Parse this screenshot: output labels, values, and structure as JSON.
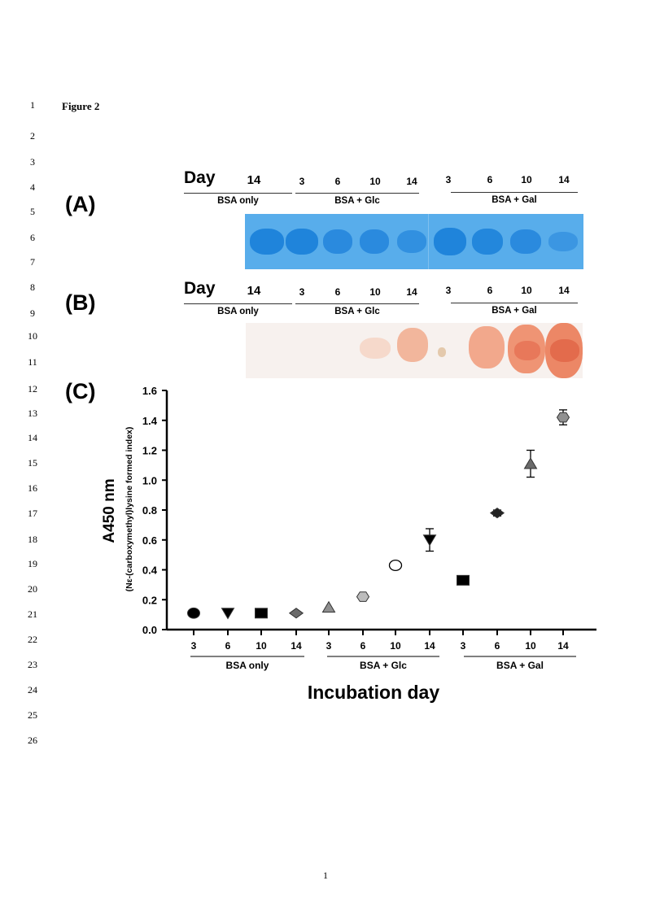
{
  "line_numbers": [
    "1",
    "2",
    "3",
    "4",
    "5",
    "6",
    "7",
    "8",
    "9",
    "10",
    "11",
    "12",
    "13",
    "14",
    "15",
    "16",
    "17",
    "18",
    "19",
    "20",
    "21",
    "22",
    "23",
    "24",
    "25",
    "26"
  ],
  "figure_title": "Figure 2",
  "panels": {
    "a_label": "(A)",
    "b_label": "(B)",
    "c_label": "(C)"
  },
  "gel_header": {
    "day_word": "Day",
    "bsa_only_day": "14",
    "glc_days": [
      "3",
      "6",
      "10",
      "14"
    ],
    "gal_days": [
      "3",
      "6",
      "10",
      "14"
    ],
    "groups": [
      "BSA only",
      "BSA + Glc",
      "BSA + Gal"
    ]
  },
  "gel_header_b": {
    "day_word": "Day",
    "bsa_only_day": "14",
    "glc_days": [
      "3",
      "6",
      "10",
      "14"
    ],
    "gal_days": [
      "3",
      "6",
      "10",
      "14"
    ],
    "groups": [
      "BSA only",
      "BSA + Glc",
      "BSA + Gal"
    ]
  },
  "chart_data": {
    "type": "scatter",
    "ylabel": "A450 nm",
    "ylabel_sub": "(Nε-(carboxymethyl)lysine formed index)",
    "xlabel": "Incubation day",
    "ylim": [
      0.0,
      1.6
    ],
    "yticks": [
      "0.0",
      "0.2",
      "0.4",
      "0.6",
      "0.8",
      "1.0",
      "1.2",
      "1.4",
      "1.6"
    ],
    "yticks_values": [
      0.0,
      0.2,
      0.4,
      0.6,
      0.8,
      1.0,
      1.2,
      1.4,
      1.6
    ],
    "categories": [
      "3",
      "6",
      "10",
      "14",
      "3",
      "6",
      "10",
      "14",
      "3",
      "6",
      "10",
      "14"
    ],
    "groups": [
      "BSA only",
      "BSA + Glc",
      "BSA + Gal"
    ],
    "series": [
      {
        "name": "BSA only",
        "days": [
          "3",
          "6",
          "10",
          "14"
        ],
        "values": [
          0.11,
          0.11,
          0.11,
          0.11
        ],
        "errors": [
          0,
          0,
          0,
          0
        ],
        "markers": [
          "circle",
          "triangle-down",
          "square",
          "diamond"
        ],
        "colors": [
          "#000000",
          "#000000",
          "#000000",
          "#6a6a6a"
        ]
      },
      {
        "name": "BSA + Glc",
        "days": [
          "3",
          "6",
          "10",
          "14"
        ],
        "values": [
          0.15,
          0.22,
          0.43,
          0.6
        ],
        "errors": [
          0.01,
          0.005,
          0.005,
          0.075
        ],
        "markers": [
          "triangle-up",
          "hexagon",
          "circle-open",
          "triangle-down"
        ],
        "colors": [
          "#8f8f8f",
          "#bcbcbc",
          "#ffffff",
          "#000000"
        ]
      },
      {
        "name": "BSA + Gal",
        "days": [
          "3",
          "6",
          "10",
          "14"
        ],
        "values": [
          0.33,
          0.78,
          1.11,
          1.42
        ],
        "errors": [
          0.005,
          0.02,
          0.09,
          0.05
        ],
        "markers": [
          "square",
          "diamond",
          "triangle-up",
          "hexagon"
        ],
        "colors": [
          "#000000",
          "#222222",
          "#6a6a6a",
          "#909090"
        ]
      }
    ]
  },
  "page_number": "1"
}
